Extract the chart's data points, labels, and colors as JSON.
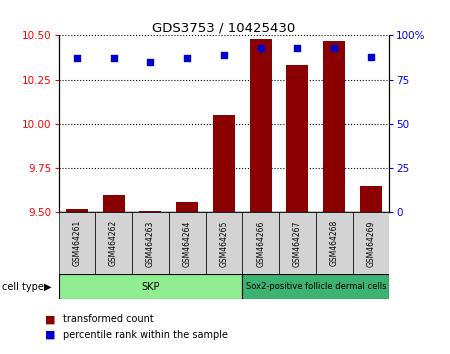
{
  "title": "GDS3753 / 10425430",
  "samples": [
    "GSM464261",
    "GSM464262",
    "GSM464263",
    "GSM464264",
    "GSM464265",
    "GSM464266",
    "GSM464267",
    "GSM464268",
    "GSM464269"
  ],
  "transformed_count": [
    9.52,
    9.6,
    9.51,
    9.56,
    10.05,
    10.48,
    10.33,
    10.47,
    9.65
  ],
  "percentile_rank": [
    87,
    87,
    85,
    87,
    89,
    93,
    93,
    93,
    88
  ],
  "ylim_left": [
    9.5,
    10.5
  ],
  "ylim_right": [
    0,
    100
  ],
  "yticks_left": [
    9.5,
    9.75,
    10.0,
    10.25,
    10.5
  ],
  "yticks_right": [
    0,
    25,
    50,
    75,
    100
  ],
  "skp_count": 5,
  "sox2_count": 4,
  "cell_type_label": "cell type",
  "legend_red": "transformed count",
  "legend_blue": "percentile rank within the sample",
  "bar_color": "#8B0000",
  "dot_color": "#0000CD",
  "gray_box_color": "#d3d3d3",
  "skp_color": "#90EE90",
  "sox2_color": "#3CB371",
  "plot_bg_color": "#ffffff"
}
